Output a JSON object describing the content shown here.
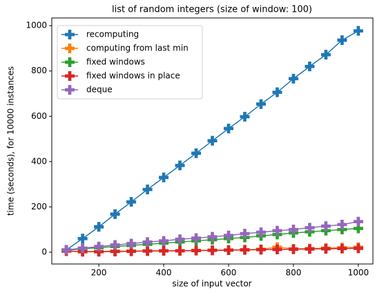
{
  "chart_data": {
    "type": "line",
    "title": "list of random integers (size of window: 100)",
    "xlabel": "size of input vector",
    "ylabel": "time (seconds), for 10000 instances",
    "x": [
      100,
      150,
      200,
      250,
      300,
      350,
      400,
      450,
      500,
      550,
      600,
      650,
      700,
      750,
      800,
      850,
      900,
      950,
      1000
    ],
    "series": [
      {
        "name": "recomputing",
        "color": "#1f77b4",
        "values": [
          10,
          60,
          112,
          168,
          222,
          277,
          330,
          383,
          437,
          492,
          546,
          598,
          654,
          706,
          766,
          820,
          872,
          936,
          977
        ]
      },
      {
        "name": "computing from last min",
        "color": "#ff7f0e",
        "values": [
          5,
          3,
          3,
          5,
          5,
          6,
          6,
          7,
          8,
          9,
          10,
          11,
          13,
          22,
          15,
          16,
          18,
          20,
          22
        ]
      },
      {
        "name": "fixed windows",
        "color": "#2ca02c",
        "values": [
          8,
          15,
          20,
          25,
          30,
          35,
          40,
          45,
          50,
          55,
          60,
          65,
          72,
          78,
          85,
          90,
          95,
          100,
          105
        ]
      },
      {
        "name": "fixed windows in place",
        "color": "#d62728",
        "values": [
          5,
          2,
          2,
          3,
          4,
          5,
          6,
          6,
          7,
          8,
          9,
          10,
          11,
          12,
          13,
          14,
          15,
          16,
          17
        ]
      },
      {
        "name": "deque",
        "color": "#9467bd",
        "values": [
          10,
          18,
          25,
          32,
          38,
          45,
          50,
          57,
          62,
          68,
          74,
          82,
          88,
          95,
          100,
          108,
          115,
          122,
          135
        ]
      }
    ],
    "xlim": [
      55,
      1045
    ],
    "ylim": [
      -52,
      1034
    ],
    "xticks": [
      200,
      400,
      600,
      800,
      1000
    ],
    "yticks": [
      0,
      200,
      400,
      600,
      800,
      1000
    ],
    "legend": "upper left"
  }
}
